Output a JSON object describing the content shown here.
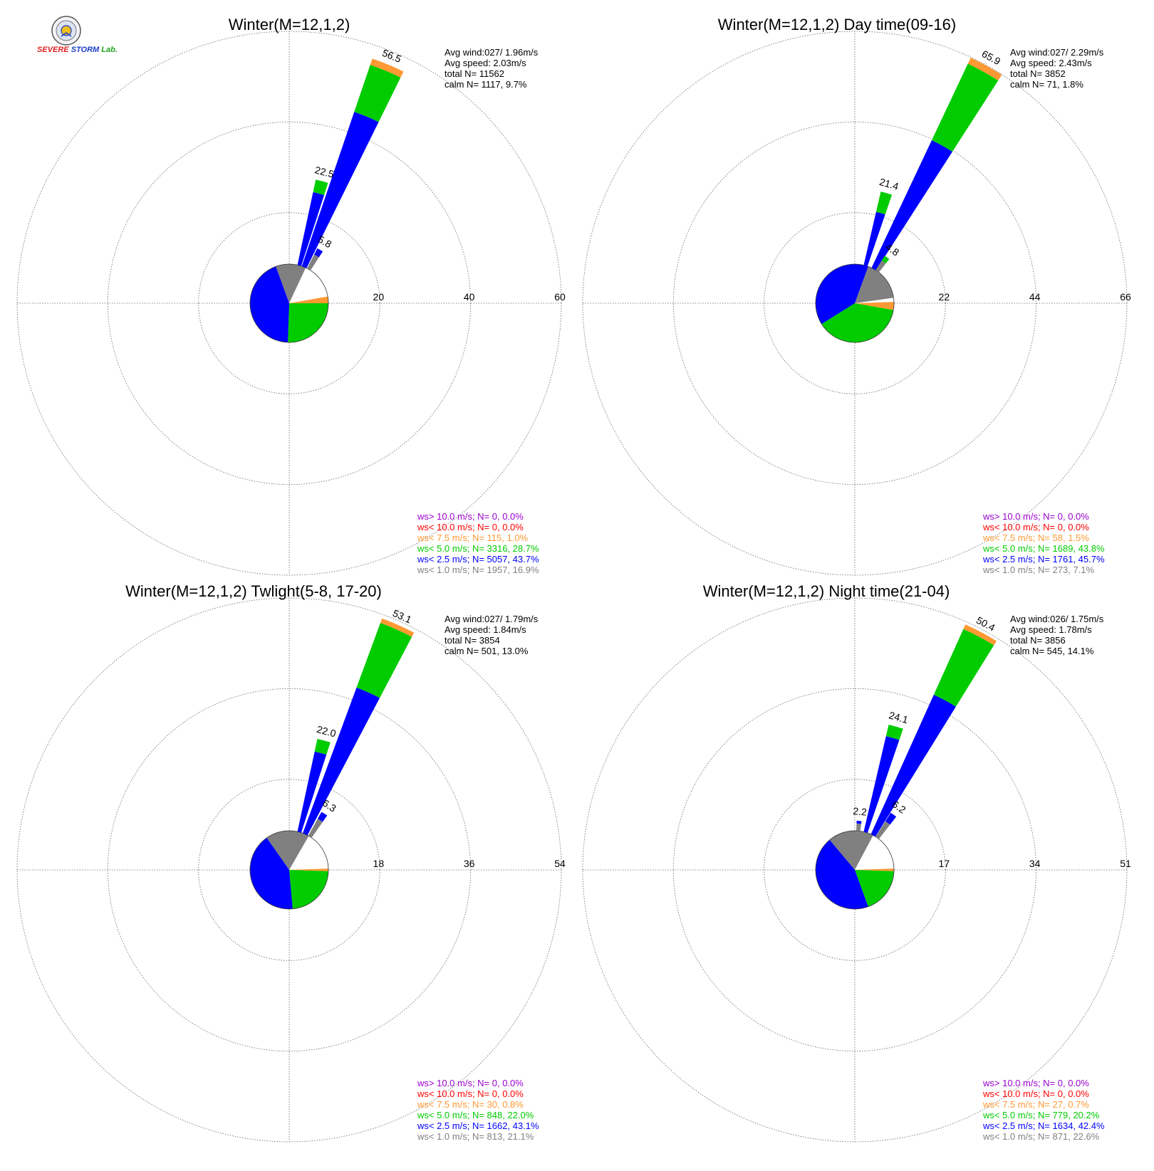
{
  "logo": {
    "text_severe": "SEVERE",
    "text_storm": "STORM",
    "text_lab": "Lab."
  },
  "colors": {
    "purple": "#9900cc",
    "red": "#ff0000",
    "orange": "#ff9933",
    "green": "#00cc00",
    "blue": "#0000ff",
    "gray": "#808080",
    "black": "#000000",
    "grid": "#666666"
  },
  "chart_data": [
    {
      "type": "windrose",
      "title": "Winter(M=12,1,2)",
      "rings": [
        "20",
        "40",
        "60"
      ],
      "ring_max": 60,
      "stats": [
        "Avg wind:027/ 1.96m/s",
        "Avg speed: 2.03m/s",
        "total N=      11562",
        "calm N=   1117,   9.7%"
      ],
      "legend": [
        {
          "text": "ws> 10.0 m/s; N=     0,  0.0%",
          "color": "purple"
        },
        {
          "text": "ws< 10.0 m/s; N=     0,  0.0%",
          "color": "red"
        },
        {
          "text": "ws<  7.5 m/s; N=   115,  1.0%",
          "color": "orange"
        },
        {
          "text": "ws<  5.0 m/s; N=  3316, 28.7%",
          "color": "green"
        },
        {
          "text": "ws<  2.5 m/s; N=  5057, 43.7%",
          "color": "blue"
        },
        {
          "text": "ws<  1.0 m/s; N=  1957, 16.9%",
          "color": "gray"
        }
      ],
      "spokes": [
        {
          "dir": 22.5,
          "total": 56.5,
          "label": "56.5",
          "bands": {
            "blue": 42.0,
            "green": 54.8,
            "orange": 56.5
          }
        },
        {
          "dir": 15.0,
          "total": 22.5,
          "label": "22.5",
          "bands": {
            "blue": 19.2,
            "green": 22.5
          }
        },
        {
          "dir": 30.0,
          "total": 5.8,
          "label": "5.8",
          "bands": {
            "gray": 4.0,
            "blue": 5.8
          }
        }
      ],
      "pie": [
        {
          "from": -20,
          "to": 25,
          "color": "gray"
        },
        {
          "from": 25,
          "to": 80,
          "color": "white"
        },
        {
          "from": 80,
          "to": 90,
          "color": "orange"
        },
        {
          "from": 90,
          "to": 182,
          "color": "green"
        },
        {
          "from": 182,
          "to": 340,
          "color": "blue"
        }
      ]
    },
    {
      "type": "windrose",
      "title": "Winter(M=12,1,2) Day time(09-16)",
      "rings": [
        "22",
        "44",
        "66"
      ],
      "ring_max": 66,
      "stats": [
        "Avg wind:027/ 2.29m/s",
        "Avg speed: 2.43m/s",
        "total N=       3852",
        "calm N=     71,   1.8%"
      ],
      "legend": [
        {
          "text": "ws> 10.0 m/s; N=     0,  0.0%",
          "color": "purple"
        },
        {
          "text": "ws< 10.0 m/s; N=     0,  0.0%",
          "color": "red"
        },
        {
          "text": "ws<  7.5 m/s; N=    58,  1.5%",
          "color": "orange"
        },
        {
          "text": "ws<  5.0 m/s; N=  1689, 43.8%",
          "color": "green"
        },
        {
          "text": "ws<  2.5 m/s; N=  1761, 45.7%",
          "color": "blue"
        },
        {
          "text": "ws<  1.0 m/s; N=   273,  7.1%",
          "color": "gray"
        }
      ],
      "spokes": [
        {
          "dir": 29.0,
          "total": 65.9,
          "label": "65.9",
          "bands": {
            "blue": 40.0,
            "green": 64.0,
            "orange": 65.9
          }
        },
        {
          "dir": 16.0,
          "total": 21.4,
          "label": "21.4",
          "bands": {
            "blue": 15.5,
            "green": 21.4
          }
        },
        {
          "dir": 35.0,
          "total": 4.8,
          "label": "4.8",
          "bands": {
            "gray": 3.2,
            "green": 4.8
          }
        }
      ],
      "pie": [
        {
          "from": 20,
          "to": 82,
          "color": "gray"
        },
        {
          "from": 82,
          "to": 88,
          "color": "white"
        },
        {
          "from": 88,
          "to": 100,
          "color": "orange"
        },
        {
          "from": 100,
          "to": 238,
          "color": "green"
        },
        {
          "from": 238,
          "to": 380,
          "color": "blue"
        }
      ]
    },
    {
      "type": "windrose",
      "title": "Winter(M=12,1,2) Twlight(5-8, 17-20)",
      "rings": [
        "18",
        "36",
        "54"
      ],
      "ring_max": 54,
      "stats": [
        "Avg wind:027/ 1.79m/s",
        "Avg speed: 1.84m/s",
        "total N=       3854",
        "calm N=    501,  13.0%"
      ],
      "legend": [
        {
          "text": "ws> 10.0 m/s; N=     0,  0.0%",
          "color": "purple"
        },
        {
          "text": "ws< 10.0 m/s; N=     0,  0.0%",
          "color": "red"
        },
        {
          "text": "ws<  7.5 m/s; N=    30,  0.8%",
          "color": "orange"
        },
        {
          "text": "ws<  5.0 m/s; N=   848, 22.0%",
          "color": "green"
        },
        {
          "text": "ws<  2.5 m/s; N=  1662, 43.1%",
          "color": "blue"
        },
        {
          "text": "ws<  1.0 m/s; N=   813, 21.1%",
          "color": "gray"
        }
      ],
      "spokes": [
        {
          "dir": 24.0,
          "total": 53.1,
          "label": "53.1",
          "bands": {
            "blue": 36.0,
            "green": 52.0,
            "orange": 53.1
          }
        },
        {
          "dir": 15.0,
          "total": 22.0,
          "label": "22.0",
          "bands": {
            "blue": 19.0,
            "green": 22.0
          }
        },
        {
          "dir": 32.0,
          "total": 6.3,
          "label": "6.3",
          "bands": {
            "gray": 4.5,
            "blue": 6.3
          }
        }
      ],
      "pie": [
        {
          "from": -35,
          "to": 30,
          "color": "gray"
        },
        {
          "from": 30,
          "to": 88,
          "color": "white"
        },
        {
          "from": 88,
          "to": 92,
          "color": "orange"
        },
        {
          "from": 92,
          "to": 175,
          "color": "green"
        },
        {
          "from": 175,
          "to": 325,
          "color": "blue"
        }
      ]
    },
    {
      "type": "windrose",
      "title": "Winter(M=12,1,2) Night time(21-04)",
      "rings": [
        "17",
        "34",
        "51"
      ],
      "ring_max": 51,
      "stats": [
        "Avg wind:026/ 1.75m/s",
        "Avg speed: 1.78m/s",
        "total N=       3856",
        "calm N=    545,  14.1%"
      ],
      "legend": [
        {
          "text": "ws> 10.0 m/s; N=     0,  0.0%",
          "color": "purple"
        },
        {
          "text": "ws< 10.0 m/s; N=     0,  0.0%",
          "color": "red"
        },
        {
          "text": "ws<  7.5 m/s; N=    27,  0.7%",
          "color": "orange"
        },
        {
          "text": "ws<  5.0 m/s; N=   779, 20.2%",
          "color": "green"
        },
        {
          "text": "ws<  2.5 m/s; N=  1634, 42.4%",
          "color": "blue"
        },
        {
          "text": "ws<  1.0 m/s; N=   871, 22.6%",
          "color": "gray"
        }
      ],
      "spokes": [
        {
          "dir": 28.0,
          "total": 50.4,
          "label": "50.4",
          "bands": {
            "blue": 33.5,
            "green": 49.3,
            "orange": 50.4
          }
        },
        {
          "dir": 16.0,
          "total": 24.1,
          "label": "24.1",
          "bands": {
            "blue": 21.5,
            "green": 24.1
          }
        },
        {
          "dir": 35.0,
          "total": 6.2,
          "label": "6.2",
          "bands": {
            "gray": 4.0,
            "blue": 6.2
          }
        },
        {
          "dir": 5.0,
          "total": 2.2,
          "label": "2.2",
          "bands": {
            "gray": 1.6,
            "blue": 2.2
          }
        }
      ],
      "pie": [
        {
          "from": -40,
          "to": 28,
          "color": "gray"
        },
        {
          "from": 28,
          "to": 88,
          "color": "white"
        },
        {
          "from": 88,
          "to": 92,
          "color": "orange"
        },
        {
          "from": 92,
          "to": 160,
          "color": "green"
        },
        {
          "from": 160,
          "to": 320,
          "color": "blue"
        }
      ]
    }
  ]
}
